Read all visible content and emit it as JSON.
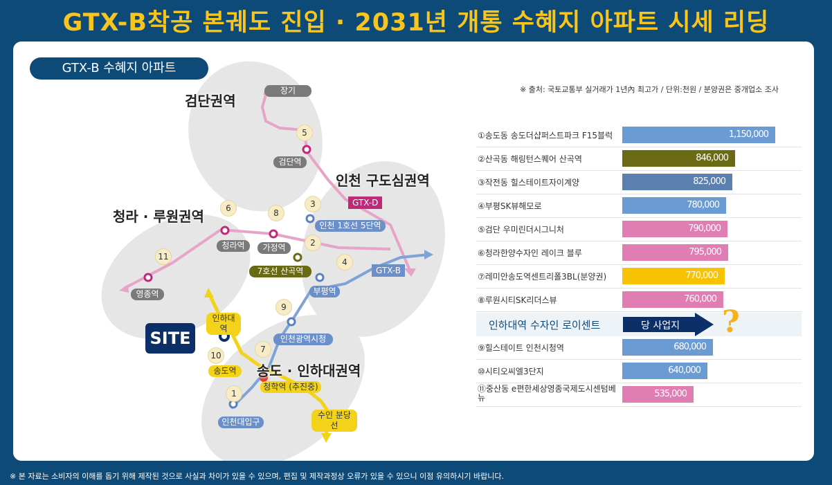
{
  "title": "GTX-B착공 본궤도 진입 · 2031년 개통 수혜지 아파트 시세 리딩",
  "badge": "GTX-B 수혜지 아파트",
  "source_note": "※ 출처: 국토교통부 실거래가 1년內 최고가 / 단위:천원 / 분양권은 중개업소 조사",
  "footer": "※ 본 자료는 소비자의 이해를 돕기 위해 제작된 것으로 사실과 차이가 있을 수 있으며, 편집 및 제작과정상 오류가 있을 수 있으니 이점 유의하시기 바랍니다.",
  "map": {
    "areas": [
      "검단권역",
      "인천 구도심권역",
      "청라 · 루원권역",
      "송도 · 인하대권역"
    ],
    "stations": [
      "장기",
      "검단역",
      "GTX-D",
      "인천 1호선 5단역",
      "가정역",
      "청라역",
      "7호선 산곡역",
      "부평역",
      "GTX-B",
      "영종역",
      "인천광역시청",
      "인하대역",
      "송도역",
      "청학역 (추진중)",
      "인천대입구",
      "수인 분당선"
    ],
    "numbers": [
      "5",
      "3",
      "6",
      "8",
      "2",
      "4",
      "11",
      "9",
      "7",
      "10",
      "1"
    ],
    "site_label": "SITE"
  },
  "highlight": {
    "label": "인하대역 수자인 로이센트",
    "arrow": "당 사업지"
  },
  "chart_data": {
    "type": "bar",
    "orientation": "horizontal",
    "unit": "천원",
    "categories": [
      "①송도동 송도더샵퍼스트파크 F15블럭",
      "②산곡동 해링턴스퀘어 산곡역",
      "③작전동 힐스테이트자이계양",
      "④부평SK뷰해모로",
      "⑤검단 우미린더시그니처",
      "⑥청라한양수자인 레이크 블루",
      "⑦레미안송도역센트리폴3BL(분양권)",
      "⑧루원시티SK리더스뷰",
      "⑨힐스테이트 인천시청역",
      "⑩시티오씨엘3단지",
      "⑪중산동 e편한세상영종국제도시센텀베뉴"
    ],
    "values": [
      1150000,
      846000,
      825000,
      780000,
      790000,
      795000,
      770000,
      760000,
      680000,
      640000,
      535000
    ],
    "labels": [
      "1,150,000",
      "846,000",
      "825,000",
      "780,000",
      "790,000",
      "795,000",
      "770,000",
      "760,000",
      "680,000",
      "640,000",
      "535,000"
    ],
    "colors": [
      "#6b9bd3",
      "#6a6a15",
      "#5b7fae",
      "#6b9bd3",
      "#e07eb4",
      "#e07eb4",
      "#f7c300",
      "#e07eb4",
      "#6b9bd3",
      "#6b9bd3",
      "#e07eb4"
    ],
    "xlim": [
      0,
      1150000
    ]
  }
}
